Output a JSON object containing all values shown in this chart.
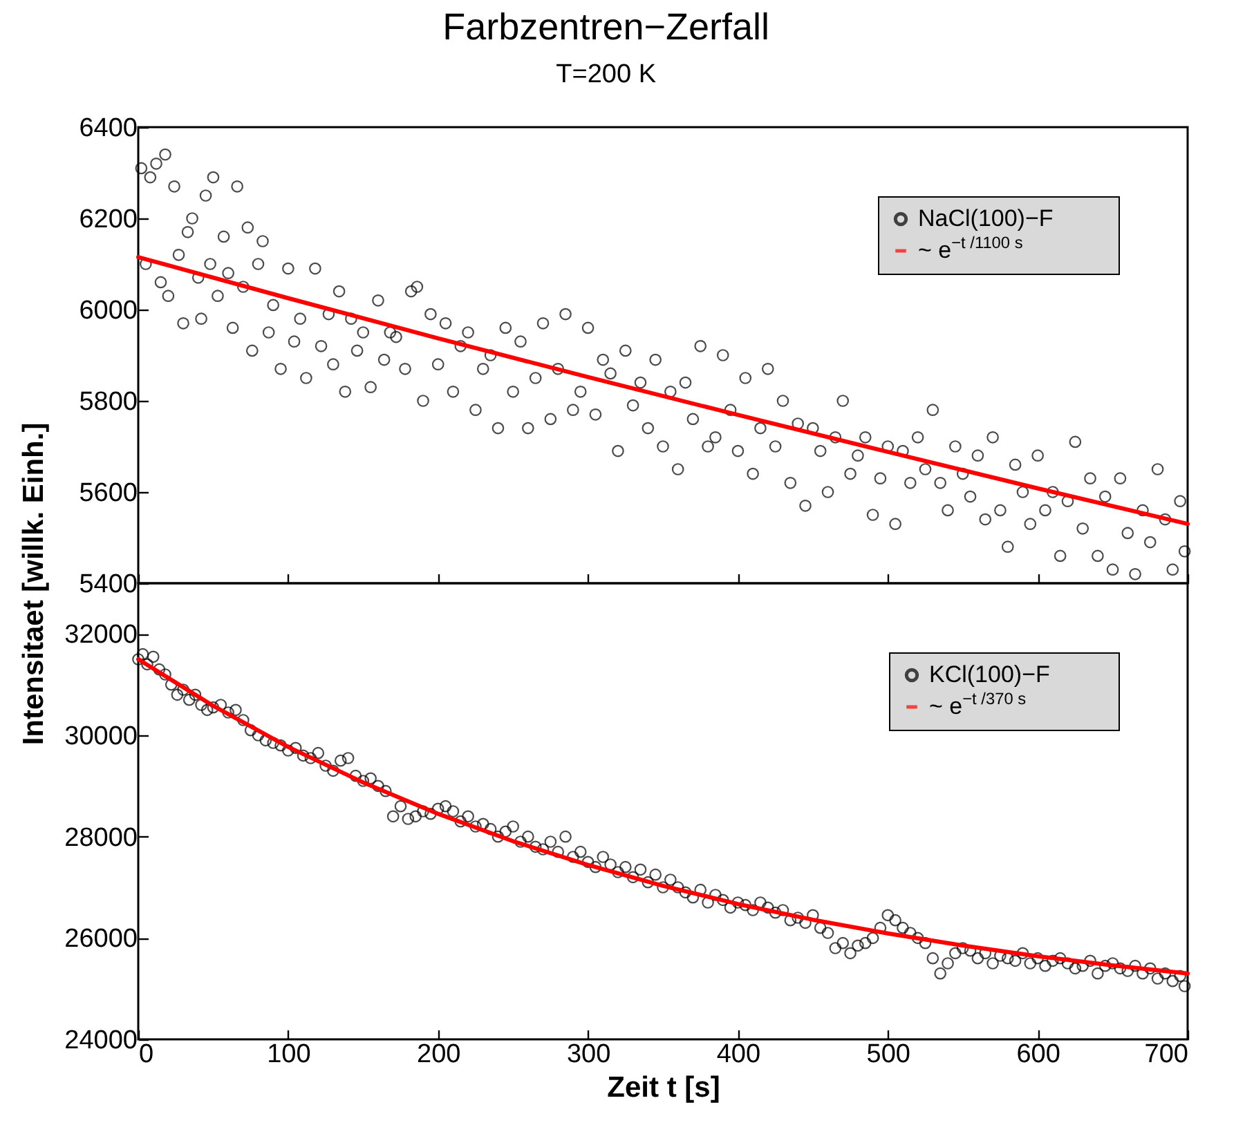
{
  "chart_data": [
    {
      "type": "scatter",
      "title": "Farbzentren−Zerfall",
      "subtitle": "T=200 K",
      "ylabel": "Intensitaet [willk. Einh.]",
      "xlim": [
        0,
        700
      ],
      "xticks": [
        0,
        100,
        200,
        300,
        400,
        500,
        600,
        700
      ],
      "ylim": [
        5400,
        6400
      ],
      "yticks": [
        5400,
        5600,
        5800,
        6000,
        6200,
        6400
      ],
      "tick_labels": "y",
      "legend": "top right",
      "series": [
        {
          "name": "NaCl(100)−F",
          "color": "#000000",
          "marker": "circle",
          "x": [
            2,
            5,
            8,
            12,
            15,
            18,
            20,
            24,
            27,
            30,
            33,
            36,
            40,
            42,
            45,
            48,
            50,
            53,
            57,
            60,
            63,
            66,
            70,
            73,
            76,
            80,
            83,
            87,
            90,
            95,
            100,
            104,
            108,
            112,
            118,
            122,
            127,
            130,
            134,
            138,
            142,
            146,
            150,
            155,
            160,
            164,
            168,
            172,
            178,
            182,
            186,
            190,
            195,
            200,
            205,
            210,
            215,
            220,
            225,
            230,
            235,
            240,
            245,
            250,
            255,
            260,
            265,
            270,
            275,
            280,
            285,
            290,
            295,
            300,
            305,
            310,
            315,
            320,
            325,
            330,
            335,
            340,
            345,
            350,
            355,
            360,
            365,
            370,
            375,
            380,
            385,
            390,
            395,
            400,
            405,
            410,
            415,
            420,
            425,
            430,
            435,
            440,
            445,
            450,
            455,
            460,
            465,
            470,
            475,
            480,
            485,
            490,
            495,
            500,
            505,
            510,
            515,
            520,
            525,
            530,
            535,
            540,
            545,
            550,
            555,
            560,
            565,
            570,
            575,
            580,
            585,
            590,
            595,
            600,
            605,
            610,
            615,
            620,
            625,
            630,
            635,
            640,
            645,
            650,
            655,
            660,
            665,
            670,
            675,
            680,
            685,
            690,
            695,
            698
          ],
          "values": [
            6310,
            6100,
            6290,
            6320,
            6060,
            6340,
            6030,
            6270,
            6120,
            5970,
            6170,
            6200,
            6070,
            5980,
            6250,
            6100,
            6290,
            6030,
            6160,
            6080,
            5960,
            6270,
            6050,
            6180,
            5910,
            6100,
            6150,
            5950,
            6010,
            5870,
            6090,
            5930,
            5980,
            5850,
            6090,
            5920,
            5990,
            5880,
            6040,
            5820,
            5980,
            5910,
            5950,
            5830,
            6020,
            5890,
            5950,
            5940,
            5870,
            6040,
            6050,
            5800,
            5990,
            5880,
            5970,
            5820,
            5920,
            5950,
            5780,
            5870,
            5900,
            5740,
            5960,
            5820,
            5930,
            5740,
            5850,
            5970,
            5760,
            5870,
            5990,
            5780,
            5820,
            5960,
            5770,
            5890,
            5860,
            5690,
            5910,
            5790,
            5840,
            5740,
            5890,
            5700,
            5820,
            5650,
            5840,
            5760,
            5920,
            5700,
            5720,
            5900,
            5780,
            5690,
            5850,
            5640,
            5740,
            5870,
            5700,
            5800,
            5620,
            5750,
            5570,
            5740,
            5690,
            5600,
            5720,
            5800,
            5640,
            5680,
            5720,
            5550,
            5630,
            5700,
            5530,
            5690,
            5620,
            5720,
            5650,
            5780,
            5620,
            5560,
            5700,
            5640,
            5590,
            5680,
            5540,
            5720,
            5560,
            5480,
            5660,
            5600,
            5530,
            5680,
            5560,
            5600,
            5460,
            5580,
            5710,
            5520,
            5630,
            5460,
            5590,
            5430,
            5630,
            5510,
            5420,
            5560,
            5490,
            5650,
            5540,
            5430,
            5580,
            5470
          ]
        },
        {
          "name": "~ e$^{−t /1100 s}$",
          "type": "line",
          "color": "#ff0000",
          "x": [
            0,
            100,
            200,
            300,
            400,
            500,
            600,
            700
          ],
          "values": [
            6115,
            6025,
            5937,
            5852,
            5769,
            5688,
            5608,
            5530
          ]
        }
      ]
    },
    {
      "type": "scatter",
      "xlabel": "Zeit t [s]",
      "xlim": [
        0,
        700
      ],
      "xticks": [
        0,
        100,
        200,
        300,
        400,
        500,
        600,
        700
      ],
      "ylim": [
        24000,
        33000
      ],
      "yticks": [
        24000,
        26000,
        28000,
        30000,
        32000
      ],
      "legend": "top right",
      "series": [
        {
          "name": "KCl(100)−F",
          "color": "#000000",
          "marker": "circle",
          "x": [
            0,
            3,
            6,
            10,
            14,
            18,
            22,
            26,
            30,
            34,
            38,
            42,
            46,
            50,
            55,
            60,
            65,
            70,
            75,
            80,
            85,
            90,
            95,
            100,
            105,
            110,
            115,
            120,
            125,
            130,
            135,
            140,
            145,
            150,
            155,
            160,
            165,
            170,
            175,
            180,
            185,
            190,
            195,
            200,
            205,
            210,
            215,
            220,
            225,
            230,
            235,
            240,
            245,
            250,
            255,
            260,
            265,
            270,
            275,
            280,
            285,
            290,
            295,
            300,
            305,
            310,
            315,
            320,
            325,
            330,
            335,
            340,
            345,
            350,
            355,
            360,
            365,
            370,
            375,
            380,
            385,
            390,
            395,
            400,
            405,
            410,
            415,
            420,
            425,
            430,
            435,
            440,
            445,
            450,
            455,
            460,
            465,
            470,
            475,
            480,
            485,
            490,
            495,
            500,
            505,
            510,
            515,
            520,
            525,
            530,
            535,
            540,
            545,
            550,
            555,
            560,
            565,
            570,
            575,
            580,
            585,
            590,
            595,
            600,
            605,
            610,
            615,
            620,
            625,
            630,
            635,
            640,
            645,
            650,
            655,
            660,
            665,
            670,
            675,
            680,
            685,
            690,
            695,
            698
          ],
          "values": [
            31500,
            31600,
            31400,
            31550,
            31300,
            31200,
            31000,
            30800,
            30900,
            30700,
            30800,
            30600,
            30500,
            30550,
            30600,
            30450,
            30500,
            30300,
            30100,
            30000,
            29900,
            29850,
            29800,
            29700,
            29750,
            29600,
            29550,
            29650,
            29400,
            29300,
            29500,
            29550,
            29200,
            29100,
            29150,
            29000,
            28900,
            28400,
            28600,
            28350,
            28400,
            28500,
            28450,
            28550,
            28600,
            28500,
            28300,
            28400,
            28200,
            28250,
            28150,
            28000,
            28100,
            28200,
            27900,
            28000,
            27800,
            27750,
            27900,
            27700,
            28000,
            27600,
            27700,
            27500,
            27400,
            27600,
            27450,
            27300,
            27400,
            27200,
            27350,
            27100,
            27250,
            27000,
            27150,
            27000,
            26900,
            26800,
            26950,
            26700,
            26850,
            26750,
            26600,
            26700,
            26650,
            26550,
            26700,
            26600,
            26500,
            26550,
            26350,
            26400,
            26300,
            26450,
            26200,
            26100,
            25800,
            25900,
            25700,
            25850,
            25900,
            26000,
            26200,
            26450,
            26350,
            26200,
            26100,
            26000,
            25900,
            25600,
            25300,
            25500,
            25700,
            25800,
            25750,
            25600,
            25700,
            25500,
            25650,
            25600,
            25550,
            25700,
            25500,
            25600,
            25450,
            25550,
            25600,
            25500,
            25400,
            25450,
            25550,
            25300,
            25450,
            25500,
            25400,
            25350,
            25450,
            25300,
            25400,
            25200,
            25300,
            25150,
            25250,
            25050
          ]
        },
        {
          "name": "~ e$^{−t /370 s}$",
          "type": "line",
          "color": "#ff0000",
          "x": [
            0,
            50,
            100,
            150,
            200,
            250,
            300,
            350,
            400,
            450,
            500,
            550,
            600,
            650,
            700
          ],
          "values": [
            31500,
            30580,
            29770,
            29070,
            28450,
            27910,
            27440,
            27030,
            26670,
            26360,
            26090,
            25850,
            25640,
            25460,
            25300
          ]
        }
      ]
    }
  ]
}
